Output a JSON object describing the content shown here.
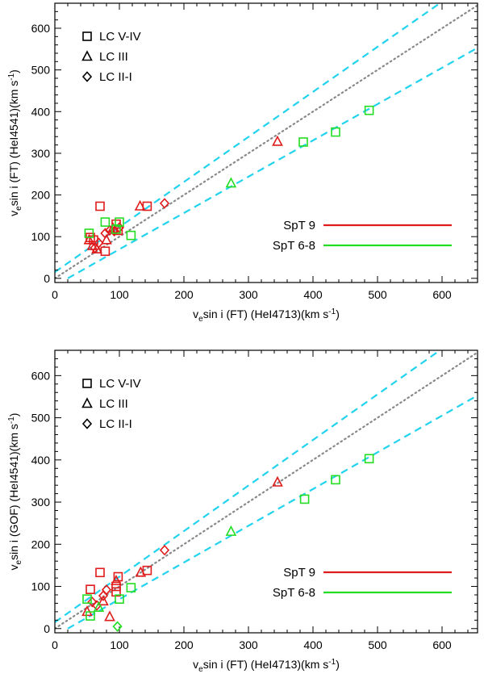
{
  "chart_data": [
    {
      "type": "scatter",
      "xlabel": {
        "pre": "v",
        "sub": "e",
        "post": "sin i (FT)  (HeI4713)(km s",
        "sup": "-1",
        "end": ")"
      },
      "ylabel": {
        "pre": "v",
        "sub": "e",
        "post": "sin i (FT)  (HeI4541)(km s",
        "sup": "-1",
        "end": ")"
      },
      "xlim": [
        0,
        655
      ],
      "ylim": [
        -10,
        660
      ],
      "xticks": [
        0,
        100,
        200,
        300,
        400,
        500,
        600
      ],
      "yticks": [
        0,
        100,
        200,
        300,
        400,
        500,
        600
      ],
      "lines": {
        "identity": {
          "color": "#888888",
          "points": [
            [
              0,
              0
            ],
            [
              655,
              655
            ]
          ]
        },
        "upper": {
          "color": "#22d3ee",
          "points": [
            [
              0,
              15
            ],
            [
              655,
              723
            ]
          ]
        },
        "lower": {
          "color": "#22d3ee",
          "points": [
            [
              20,
              0
            ],
            [
              655,
              553
            ]
          ]
        }
      },
      "marker_legend": [
        {
          "marker": "square",
          "label": "LC V-IV"
        },
        {
          "marker": "triangle",
          "label": "LC III"
        },
        {
          "marker": "diamond",
          "label": "LC II-I"
        }
      ],
      "series_legend": [
        {
          "name": "SpT 9",
          "color": "#e01b1b"
        },
        {
          "name": "SpT 6-8",
          "color": "#22dd22"
        }
      ],
      "points": [
        {
          "x": 70,
          "y": 173,
          "marker": "square",
          "series": "SpT 9"
        },
        {
          "x": 55,
          "y": 98,
          "marker": "square",
          "series": "SpT 9"
        },
        {
          "x": 60,
          "y": 92,
          "marker": "square",
          "series": "SpT 9"
        },
        {
          "x": 95,
          "y": 130,
          "marker": "square",
          "series": "SpT 9"
        },
        {
          "x": 98,
          "y": 115,
          "marker": "square",
          "series": "SpT 9"
        },
        {
          "x": 143,
          "y": 173,
          "marker": "square",
          "series": "SpT 9"
        },
        {
          "x": 78,
          "y": 65,
          "marker": "square",
          "series": "SpT 9"
        },
        {
          "x": 53,
          "y": 92,
          "marker": "triangle",
          "series": "SpT 9"
        },
        {
          "x": 58,
          "y": 78,
          "marker": "triangle",
          "series": "SpT 9"
        },
        {
          "x": 65,
          "y": 70,
          "marker": "triangle",
          "series": "SpT 9"
        },
        {
          "x": 80,
          "y": 92,
          "marker": "triangle",
          "series": "SpT 9"
        },
        {
          "x": 90,
          "y": 120,
          "marker": "triangle",
          "series": "SpT 9"
        },
        {
          "x": 132,
          "y": 173,
          "marker": "triangle",
          "series": "SpT 9"
        },
        {
          "x": 345,
          "y": 328,
          "marker": "triangle",
          "series": "SpT 9"
        },
        {
          "x": 62,
          "y": 73,
          "marker": "diamond",
          "series": "SpT 9"
        },
        {
          "x": 68,
          "y": 85,
          "marker": "diamond",
          "series": "SpT 9"
        },
        {
          "x": 78,
          "y": 108,
          "marker": "diamond",
          "series": "SpT 9"
        },
        {
          "x": 85,
          "y": 115,
          "marker": "diamond",
          "series": "SpT 9"
        },
        {
          "x": 92,
          "y": 113,
          "marker": "diamond",
          "series": "SpT 9"
        },
        {
          "x": 100,
          "y": 122,
          "marker": "diamond",
          "series": "SpT 9"
        },
        {
          "x": 170,
          "y": 180,
          "marker": "diamond",
          "series": "SpT 9"
        },
        {
          "x": 53,
          "y": 108,
          "marker": "square",
          "series": "SpT 6-8"
        },
        {
          "x": 78,
          "y": 135,
          "marker": "square",
          "series": "SpT 6-8"
        },
        {
          "x": 100,
          "y": 135,
          "marker": "square",
          "series": "SpT 6-8"
        },
        {
          "x": 95,
          "y": 118,
          "marker": "square",
          "series": "SpT 6-8"
        },
        {
          "x": 118,
          "y": 103,
          "marker": "square",
          "series": "SpT 6-8"
        },
        {
          "x": 385,
          "y": 327,
          "marker": "square",
          "series": "SpT 6-8"
        },
        {
          "x": 435,
          "y": 351,
          "marker": "square",
          "series": "SpT 6-8"
        },
        {
          "x": 487,
          "y": 403,
          "marker": "square",
          "series": "SpT 6-8"
        },
        {
          "x": 273,
          "y": 228,
          "marker": "triangle",
          "series": "SpT 6-8"
        }
      ]
    },
    {
      "type": "scatter",
      "xlabel": {
        "pre": "v",
        "sub": "e",
        "post": "sin i (FT)  (HeI4713)(km s",
        "sup": "-1",
        "end": ")"
      },
      "ylabel": {
        "pre": "v",
        "sub": "e",
        "post": "sin i (GOF)  (HeI4541)(km s",
        "sup": "-1",
        "end": ")"
      },
      "xlim": [
        0,
        655
      ],
      "ylim": [
        -10,
        660
      ],
      "xticks": [
        0,
        100,
        200,
        300,
        400,
        500,
        600
      ],
      "yticks": [
        0,
        100,
        200,
        300,
        400,
        500,
        600
      ],
      "lines": {
        "identity": {
          "color": "#888888",
          "points": [
            [
              0,
              0
            ],
            [
              655,
              655
            ]
          ]
        },
        "upper": {
          "color": "#22d3ee",
          "points": [
            [
              0,
              15
            ],
            [
              655,
              723
            ]
          ]
        },
        "lower": {
          "color": "#22d3ee",
          "points": [
            [
              20,
              0
            ],
            [
              655,
              553
            ]
          ]
        }
      },
      "marker_legend": [
        {
          "marker": "square",
          "label": "LC V-IV"
        },
        {
          "marker": "triangle",
          "label": "LC III"
        },
        {
          "marker": "diamond",
          "label": "LC II-I"
        }
      ],
      "series_legend": [
        {
          "name": "SpT 9",
          "color": "#e01b1b"
        },
        {
          "name": "SpT 6-8",
          "color": "#22dd22"
        }
      ],
      "points": [
        {
          "x": 70,
          "y": 133,
          "marker": "square",
          "series": "SpT 9"
        },
        {
          "x": 55,
          "y": 93,
          "marker": "square",
          "series": "SpT 9"
        },
        {
          "x": 95,
          "y": 100,
          "marker": "square",
          "series": "SpT 9"
        },
        {
          "x": 98,
          "y": 123,
          "marker": "square",
          "series": "SpT 9"
        },
        {
          "x": 95,
          "y": 87,
          "marker": "square",
          "series": "SpT 9"
        },
        {
          "x": 143,
          "y": 138,
          "marker": "square",
          "series": "SpT 9"
        },
        {
          "x": 50,
          "y": 40,
          "marker": "triangle",
          "series": "SpT 9"
        },
        {
          "x": 75,
          "y": 65,
          "marker": "triangle",
          "series": "SpT 9"
        },
        {
          "x": 85,
          "y": 28,
          "marker": "triangle",
          "series": "SpT 9"
        },
        {
          "x": 95,
          "y": 113,
          "marker": "triangle",
          "series": "SpT 9"
        },
        {
          "x": 133,
          "y": 133,
          "marker": "triangle",
          "series": "SpT 9"
        },
        {
          "x": 345,
          "y": 347,
          "marker": "triangle",
          "series": "SpT 9"
        },
        {
          "x": 58,
          "y": 63,
          "marker": "diamond",
          "series": "SpT 9"
        },
        {
          "x": 65,
          "y": 55,
          "marker": "diamond",
          "series": "SpT 9"
        },
        {
          "x": 75,
          "y": 78,
          "marker": "diamond",
          "series": "SpT 9"
        },
        {
          "x": 80,
          "y": 92,
          "marker": "diamond",
          "series": "SpT 9"
        },
        {
          "x": 170,
          "y": 186,
          "marker": "diamond",
          "series": "SpT 9"
        },
        {
          "x": 50,
          "y": 70,
          "marker": "square",
          "series": "SpT 6-8"
        },
        {
          "x": 55,
          "y": 30,
          "marker": "square",
          "series": "SpT 6-8"
        },
        {
          "x": 100,
          "y": 70,
          "marker": "square",
          "series": "SpT 6-8"
        },
        {
          "x": 118,
          "y": 97,
          "marker": "square",
          "series": "SpT 6-8"
        },
        {
          "x": 387,
          "y": 307,
          "marker": "square",
          "series": "SpT 6-8"
        },
        {
          "x": 435,
          "y": 353,
          "marker": "square",
          "series": "SpT 6-8"
        },
        {
          "x": 487,
          "y": 403,
          "marker": "square",
          "series": "SpT 6-8"
        },
        {
          "x": 273,
          "y": 230,
          "marker": "triangle",
          "series": "SpT 6-8"
        },
        {
          "x": 68,
          "y": 50,
          "marker": "triangle",
          "series": "SpT 6-8"
        },
        {
          "x": 97,
          "y": 5,
          "marker": "diamond",
          "series": "SpT 6-8"
        }
      ]
    }
  ]
}
